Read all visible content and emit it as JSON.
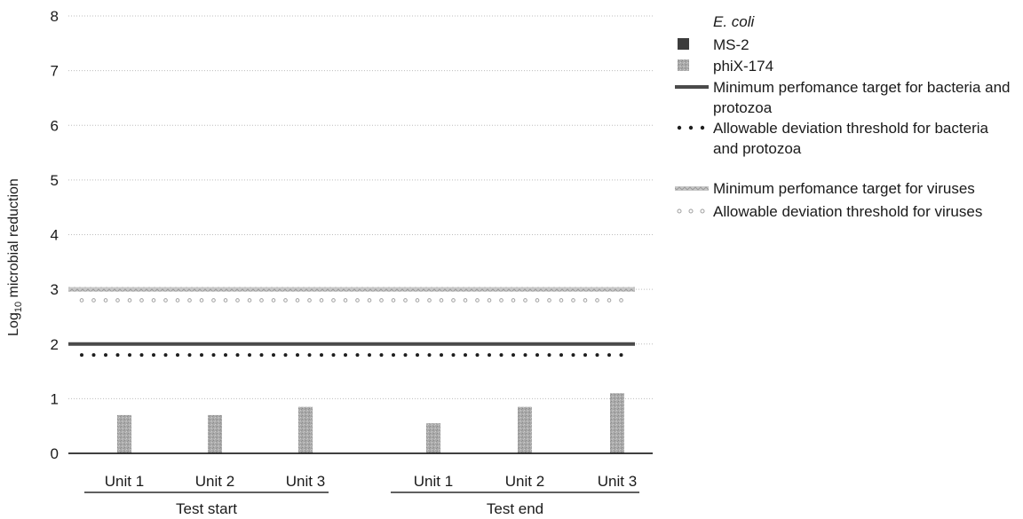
{
  "colors": {
    "ecoli": "#1e1e1e",
    "ms2": "#3c3c3c",
    "phix174": "#a8a8a8",
    "bacteria_target": "#4a4a4a",
    "bacteria_threshold": "#1e1e1e",
    "virus_target": "#b4b4b4",
    "virus_threshold": "#a0a0a0",
    "grid": "#bdbdbd",
    "axis": "#000000"
  },
  "chart_data": {
    "type": "bar",
    "ylabel": "Log",
    "ylabel_subscript": "10",
    "ylabel_rest": " microbial reduction",
    "xlabel": "",
    "ylim": [
      0,
      8
    ],
    "yticks": [
      "0",
      "1",
      "2",
      "3",
      "4",
      "5",
      "6",
      "7",
      "8"
    ],
    "grid": true,
    "legend_position": "right",
    "groups": [
      {
        "label": "Test start",
        "categories": [
          "Unit 1",
          "Unit 2",
          "Unit 3"
        ]
      },
      {
        "label": "Test end",
        "categories": [
          "Unit 1",
          "Unit 2",
          "Unit 3"
        ]
      }
    ],
    "categories": [
      "Unit 1",
      "Unit 2",
      "Unit 3",
      "Unit 1",
      "Unit 2",
      "Unit 3"
    ],
    "series": [
      {
        "name": "E. coli",
        "values": [
          null,
          null,
          null,
          null,
          null,
          null
        ]
      },
      {
        "name": "MS-2",
        "values": [
          null,
          null,
          null,
          null,
          null,
          null
        ]
      },
      {
        "name": "phiX-174",
        "values": [
          0.7,
          0.7,
          0.85,
          0.55,
          0.85,
          1.1
        ]
      }
    ],
    "reference_lines": [
      {
        "name": "Minimum perfomance target for bacteria and protozoa",
        "value": 2.0,
        "style": "solid"
      },
      {
        "name": "Allowable deviation threshold for bacteria and protozoa",
        "value": 1.8,
        "style": "dots"
      },
      {
        "name": "Minimum perfomance target for viruses",
        "value": 3.0,
        "style": "textured"
      },
      {
        "name": "Allowable deviation threshold for viruses",
        "value": 2.8,
        "style": "light-dots"
      }
    ]
  },
  "legend": {
    "items": [
      {
        "label": "E. coli",
        "marker": "none",
        "italic": true
      },
      {
        "label": "MS-2",
        "marker": "dark-square"
      },
      {
        "label": "phiX-174",
        "marker": "light-square"
      },
      {
        "label_lines": [
          "Minimum perfomance target for bacteria and",
          "protozoa"
        ],
        "marker": "solid-line"
      },
      {
        "label_lines": [
          "Allowable deviation threshold for bacteria",
          "and protozoa"
        ],
        "marker": "dark-dots"
      },
      {
        "label": "Minimum perfomance target for viruses",
        "marker": "textured-line"
      },
      {
        "label": "Allowable deviation threshold for viruses",
        "marker": "light-dots"
      }
    ]
  }
}
